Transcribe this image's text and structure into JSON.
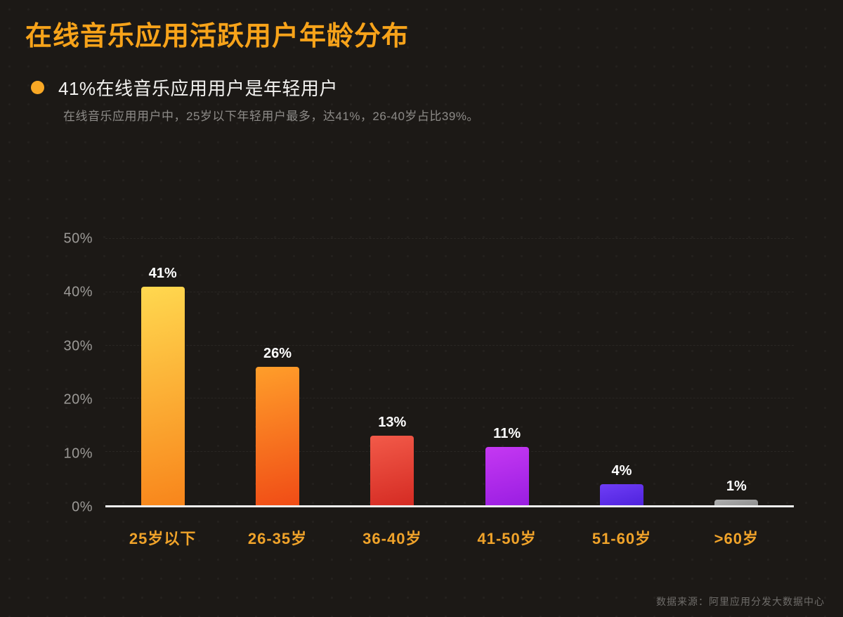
{
  "page": {
    "title": "在线音乐应用活跃用户年龄分布",
    "headline": "41%在线音乐应用用户是年轻用户",
    "subtitle": "在线音乐应用用户中，25岁以下年轻用户最多，达41%，26-40岁占比39%。",
    "source": "数据来源：阿里应用分发大数据中心"
  },
  "colors": {
    "background": "#1c1916",
    "accent_gold": "#f7a31a",
    "category_label": "#f0a32a",
    "text_primary": "#f2f1ef",
    "text_secondary": "#8d8b88",
    "axis_tick": "#9c9a97",
    "baseline": "#ededed"
  },
  "chart_data": {
    "type": "bar",
    "title": "在线音乐应用活跃用户年龄分布",
    "categories": [
      "25岁以下",
      "26-35岁",
      "36-40岁",
      "41-50岁",
      "51-60岁",
      ">60岁"
    ],
    "values": [
      41,
      26,
      13,
      11,
      4,
      1
    ],
    "value_labels": [
      "41%",
      "26%",
      "13%",
      "11%",
      "4%",
      "1%"
    ],
    "xlabel": "",
    "ylabel": "",
    "ylim": [
      0,
      50
    ],
    "yticks": [
      "0%",
      "10%",
      "20%",
      "30%",
      "40%",
      "50%"
    ],
    "grid": true,
    "legend": "none",
    "bar_gradients": [
      [
        "#ffd84f",
        "#f8851b"
      ],
      [
        "#ff9e2a",
        "#f04c16"
      ],
      [
        "#f25a49",
        "#d52b23"
      ],
      [
        "#c538f2",
        "#9a1ee2"
      ],
      [
        "#6f3df6",
        "#4f23dd"
      ],
      [
        "#b0b0b0",
        "#8f8f8f"
      ]
    ]
  }
}
